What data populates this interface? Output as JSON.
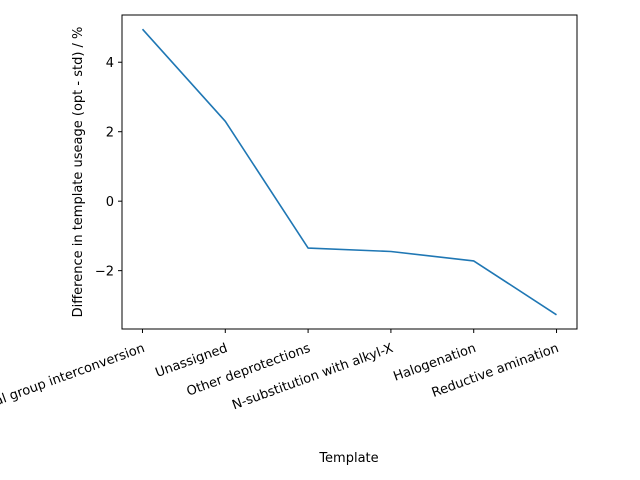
{
  "chart_data": {
    "type": "line",
    "title": "",
    "xlabel": "Template",
    "ylabel": "Difference in template useage (opt - std) / %",
    "categories": [
      "Other functional group interconversion",
      "Unassigned",
      "Other deprotections",
      "N-substitution with alkyl-X",
      "Halogenation",
      "Reductive amination"
    ],
    "series": [
      {
        "values": [
          4.95,
          2.3,
          -1.35,
          -1.45,
          -1.72,
          -3.27
        ],
        "color": "#1f77b4"
      }
    ],
    "ylim": [
      -3.68,
      5.36
    ],
    "yticks": [
      -2,
      0,
      2,
      4
    ],
    "grid": false,
    "legend": "none"
  }
}
